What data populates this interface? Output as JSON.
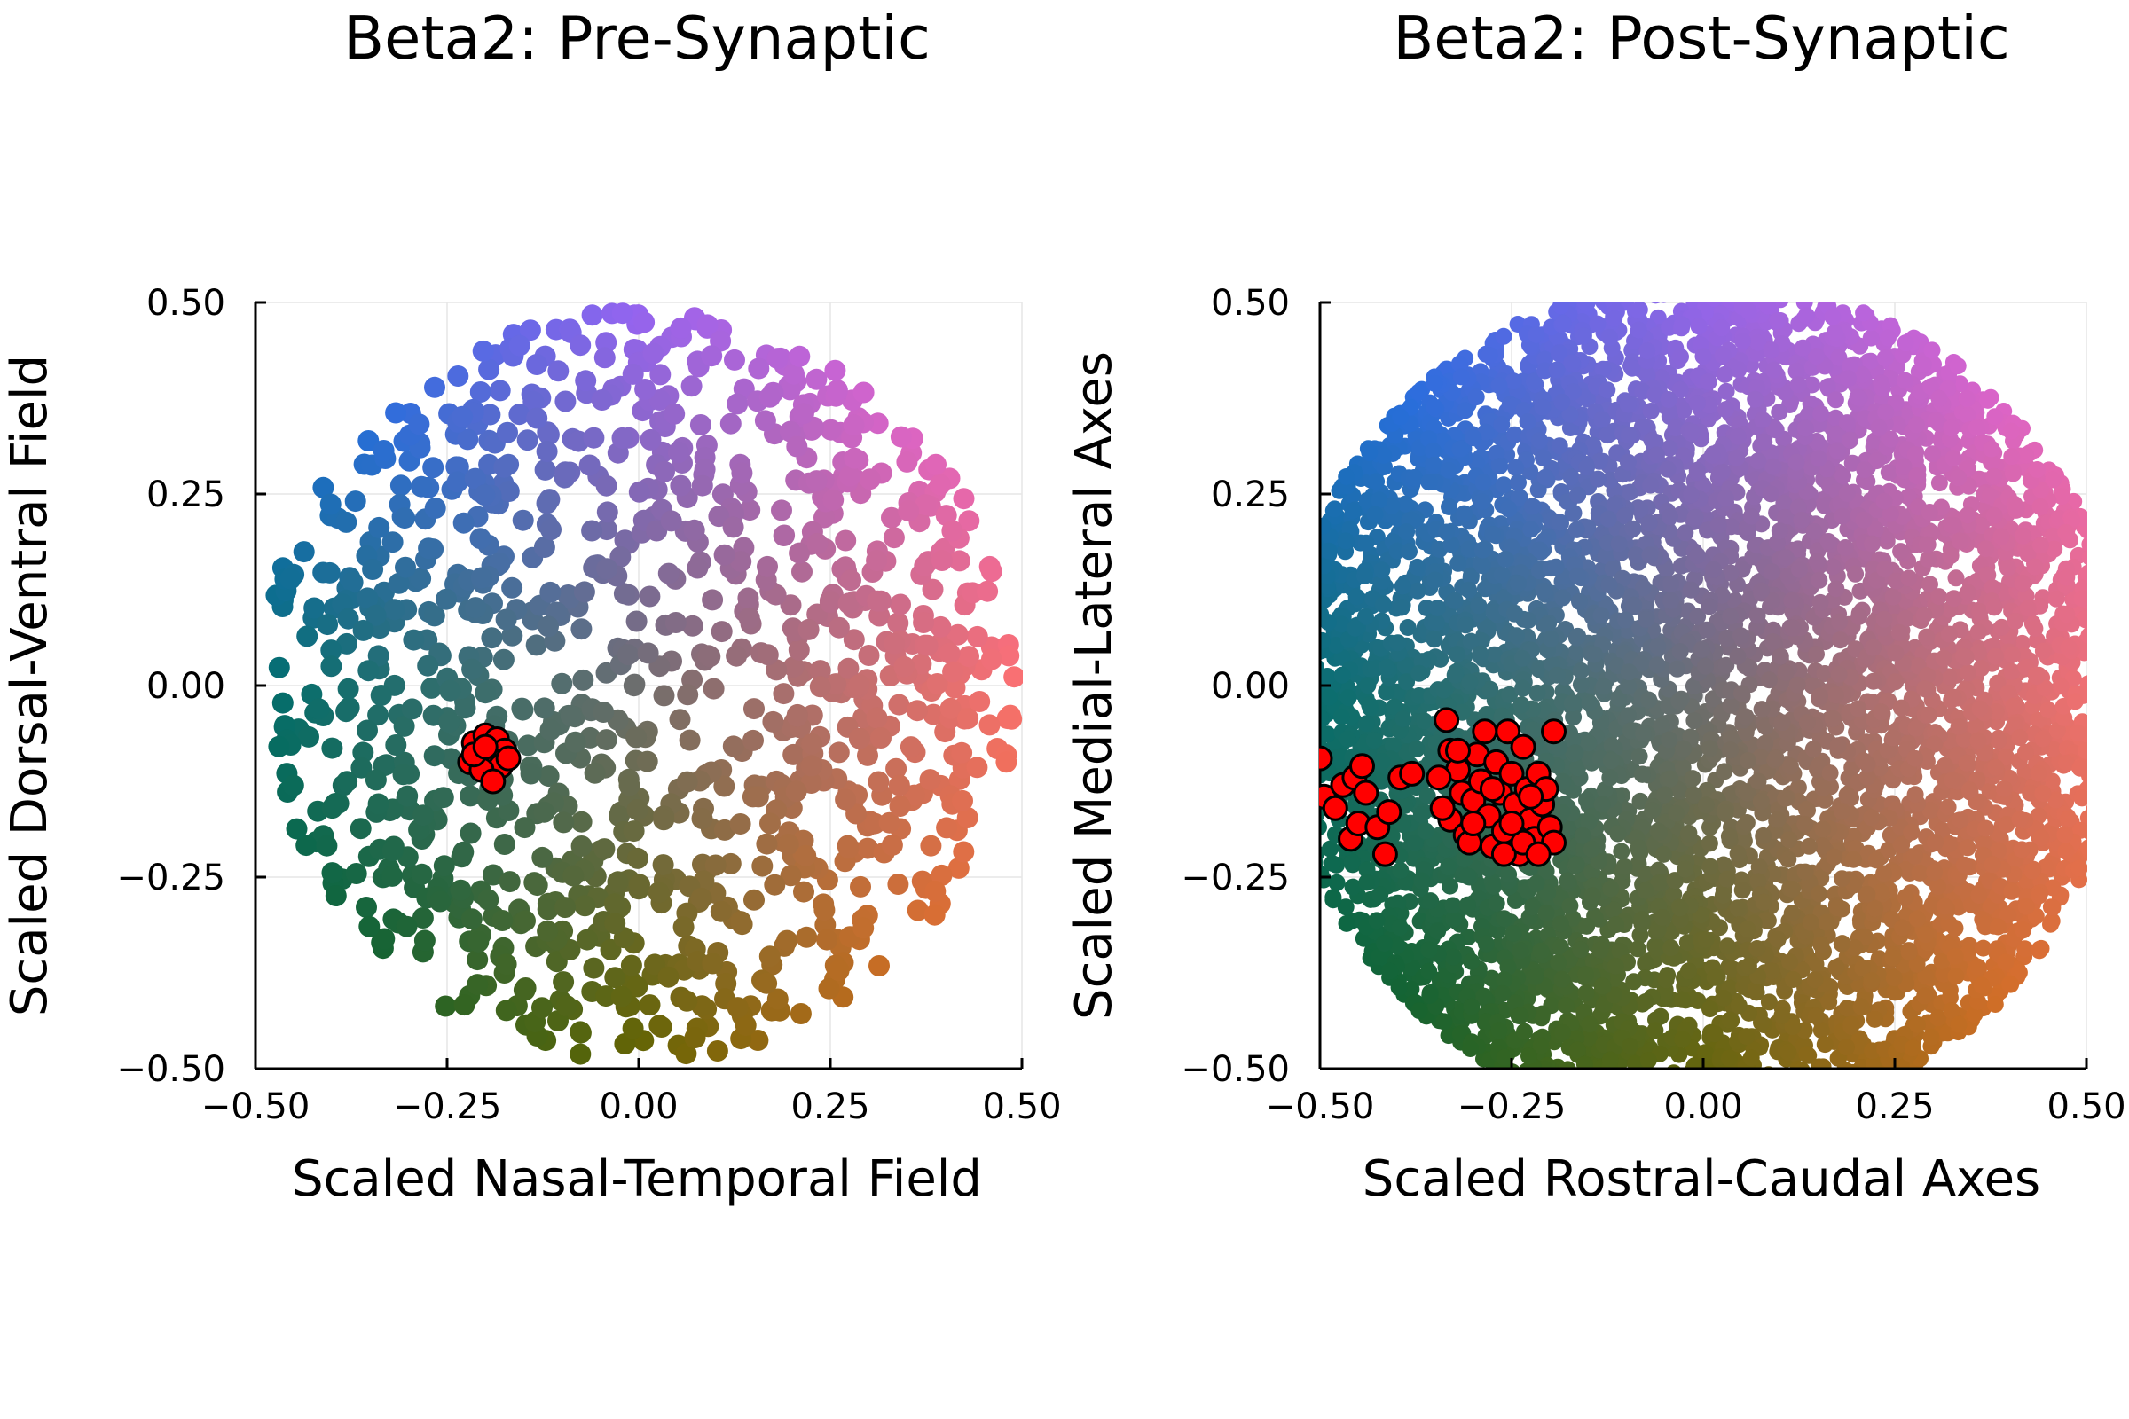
{
  "chart_data": [
    {
      "type": "scatter",
      "title": "Beta2: Pre-Synaptic",
      "xlabel": "Scaled Nasal-Temporal Field",
      "ylabel": "Scaled Dorsal-Ventral Field",
      "xlim": [
        -0.5,
        0.5
      ],
      "ylim": [
        -0.5,
        0.5
      ],
      "xticks": [
        "−0.50",
        "−0.25",
        "0.00",
        "0.25",
        "0.50"
      ],
      "yticks": [
        "−0.50",
        "−0.25",
        "0.00",
        "0.25",
        "0.50"
      ],
      "grid": true,
      "legend": "none",
      "background_points": {
        "distribution": "disk",
        "center": [
          0.0,
          0.0
        ],
        "radius": 0.49,
        "count": 1100,
        "coloring": "hue by angle (teal left, blue top-left, purple top, pink right, orange bottom-right, olive bottom, green bottom-left), grey center"
      },
      "highlight_points": {
        "color": "#ff0000",
        "edge": "#000000",
        "points": [
          [
            -0.215,
            -0.075
          ],
          [
            -0.2,
            -0.065
          ],
          [
            -0.185,
            -0.07
          ],
          [
            -0.175,
            -0.085
          ],
          [
            -0.195,
            -0.095
          ],
          [
            -0.22,
            -0.1
          ],
          [
            -0.18,
            -0.105
          ],
          [
            -0.205,
            -0.11
          ],
          [
            -0.19,
            -0.125
          ],
          [
            -0.215,
            -0.09
          ],
          [
            -0.17,
            -0.095
          ],
          [
            -0.2,
            -0.08
          ]
        ]
      }
    },
    {
      "type": "scatter",
      "title": "Beta2: Post-Synaptic",
      "xlabel": "Scaled Rostral-Caudal Axes",
      "ylabel": "Scaled Medial-Lateral Axes",
      "xlim": [
        -0.5,
        0.5
      ],
      "ylim": [
        -0.5,
        0.5
      ],
      "xticks": [
        "−0.50",
        "−0.25",
        "0.00",
        "0.25",
        "0.50"
      ],
      "yticks": [
        "−0.50",
        "−0.25",
        "0.00",
        "0.25",
        "0.50"
      ],
      "grid": true,
      "legend": "none",
      "background_points": {
        "distribution": "disk",
        "center": [
          0.0,
          -0.02
        ],
        "radius": 0.55,
        "count": 6000,
        "coloring": "hue by angle (teal left, blue top-left, purple top, pink right, orange bottom-right, olive bottom, green bottom-left), grey center"
      },
      "highlight_points": {
        "color": "#ff0000",
        "edge": "#000000",
        "points": [
          [
            -0.5,
            -0.095
          ],
          [
            -0.495,
            -0.145
          ],
          [
            -0.48,
            -0.16
          ],
          [
            -0.47,
            -0.13
          ],
          [
            -0.455,
            -0.12
          ],
          [
            -0.445,
            -0.105
          ],
          [
            -0.44,
            -0.14
          ],
          [
            -0.46,
            -0.2
          ],
          [
            -0.45,
            -0.18
          ],
          [
            -0.425,
            -0.185
          ],
          [
            -0.41,
            -0.165
          ],
          [
            -0.415,
            -0.22
          ],
          [
            -0.395,
            -0.12
          ],
          [
            -0.38,
            -0.115
          ],
          [
            -0.335,
            -0.045
          ],
          [
            -0.33,
            -0.085
          ],
          [
            -0.32,
            -0.11
          ],
          [
            -0.315,
            -0.14
          ],
          [
            -0.33,
            -0.175
          ],
          [
            -0.31,
            -0.195
          ],
          [
            -0.3,
            -0.15
          ],
          [
            -0.295,
            -0.09
          ],
          [
            -0.29,
            -0.125
          ],
          [
            -0.28,
            -0.17
          ],
          [
            -0.275,
            -0.21
          ],
          [
            -0.27,
            -0.1
          ],
          [
            -0.265,
            -0.14
          ],
          [
            -0.26,
            -0.19
          ],
          [
            -0.255,
            -0.06
          ],
          [
            -0.25,
            -0.115
          ],
          [
            -0.245,
            -0.155
          ],
          [
            -0.24,
            -0.22
          ],
          [
            -0.235,
            -0.08
          ],
          [
            -0.23,
            -0.135
          ],
          [
            -0.225,
            -0.175
          ],
          [
            -0.22,
            -0.2
          ],
          [
            -0.215,
            -0.115
          ],
          [
            -0.21,
            -0.155
          ],
          [
            -0.205,
            -0.135
          ],
          [
            -0.2,
            -0.185
          ],
          [
            -0.195,
            -0.205
          ],
          [
            -0.195,
            -0.06
          ],
          [
            -0.305,
            -0.205
          ],
          [
            -0.285,
            -0.06
          ],
          [
            -0.345,
            -0.12
          ],
          [
            -0.34,
            -0.16
          ],
          [
            -0.32,
            -0.085
          ],
          [
            -0.3,
            -0.18
          ],
          [
            -0.26,
            -0.22
          ],
          [
            -0.235,
            -0.205
          ],
          [
            -0.215,
            -0.22
          ],
          [
            -0.225,
            -0.145
          ],
          [
            -0.25,
            -0.18
          ],
          [
            -0.275,
            -0.135
          ]
        ]
      }
    }
  ]
}
